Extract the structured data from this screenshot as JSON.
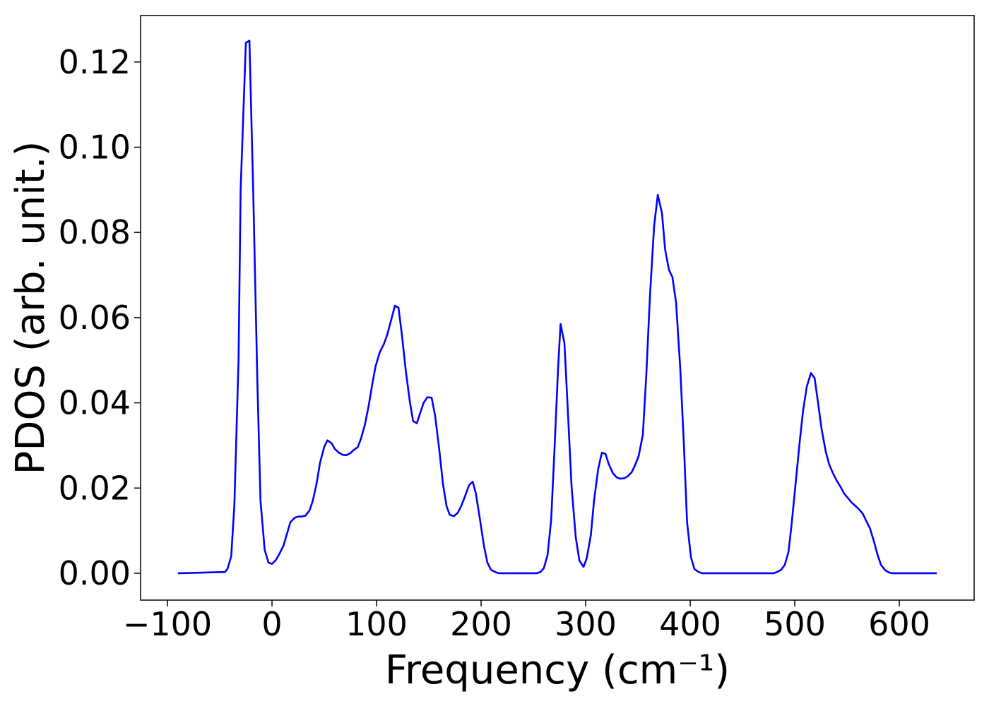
{
  "chart_data": {
    "type": "line",
    "xlabel": "Frequency (cm⁻¹)",
    "ylabel": "PDOS (arb. unit.)",
    "color": "#0000ff",
    "x": [
      -90,
      -45,
      -42.6,
      -39,
      -36,
      -32,
      -30,
      -25,
      -21.6,
      -18,
      -14,
      -11,
      -7,
      -3.4,
      0,
      3.4,
      7,
      11,
      14,
      17.6,
      21.6,
      25,
      28,
      32,
      36,
      39,
      42.6,
      46,
      50,
      53,
      57,
      60,
      64,
      67.6,
      71,
      75,
      78,
      82,
      85,
      89,
      92.6,
      96,
      99,
      103,
      107,
      110,
      113.5,
      117.6,
      121,
      124,
      128,
      132,
      135,
      138.5,
      142,
      145,
      148.6,
      152.7,
      156,
      160,
      163.5,
      167,
      170,
      174,
      177.7,
      181,
      184.5,
      188.5,
      192,
      195,
      199,
      202.7,
      206,
      209.5,
      213.5,
      217,
      253,
      256.8,
      260,
      263.5,
      267,
      270,
      273.6,
      276,
      279.7,
      283,
      286.5,
      290.5,
      294,
      298,
      301,
      305,
      308,
      312,
      315.5,
      319,
      322,
      326,
      329.7,
      333,
      337,
      340.5,
      344,
      347,
      350.7,
      354.7,
      358,
      361.5,
      365.5,
      369,
      373,
      376,
      379.7,
      383,
      386.5,
      390.5,
      394,
      397,
      400.7,
      404,
      408,
      411.5,
      479.7,
      483,
      487,
      490.5,
      494,
      497,
      501,
      504.7,
      508,
      511.5,
      515.5,
      519,
      522,
      525.7,
      529.7,
      533,
      536.5,
      540,
      544,
      547,
      550.7,
      554,
      558,
      561.5,
      565,
      568,
      572,
      575.7,
      579,
      582.4,
      586.5,
      589.9,
      593,
      635.8
    ],
    "values": [
      0,
      0.0003,
      0.001,
      0.004,
      0.016,
      0.05,
      0.09,
      0.1245,
      0.125,
      0.09,
      0.045,
      0.017,
      0.0055,
      0.0025,
      0.0022,
      0.003,
      0.0045,
      0.0065,
      0.009,
      0.012,
      0.013,
      0.0133,
      0.0133,
      0.0135,
      0.0148,
      0.017,
      0.021,
      0.026,
      0.0297,
      0.0312,
      0.0305,
      0.0292,
      0.0283,
      0.0278,
      0.0277,
      0.0282,
      0.0289,
      0.0296,
      0.0315,
      0.035,
      0.0395,
      0.0445,
      0.0485,
      0.0518,
      0.0538,
      0.0558,
      0.059,
      0.0628,
      0.0623,
      0.0565,
      0.0475,
      0.04,
      0.0357,
      0.0352,
      0.0378,
      0.04,
      0.0413,
      0.0412,
      0.037,
      0.029,
      0.021,
      0.0157,
      0.0137,
      0.0134,
      0.0142,
      0.0158,
      0.018,
      0.0207,
      0.0215,
      0.0187,
      0.0125,
      0.0065,
      0.0025,
      0.0008,
      0.0003,
      0,
      0,
      0.0003,
      0.0012,
      0.0042,
      0.0125,
      0.028,
      0.048,
      0.0585,
      0.054,
      0.038,
      0.0205,
      0.0085,
      0.003,
      0.0015,
      0.0035,
      0.009,
      0.017,
      0.0245,
      0.0283,
      0.028,
      0.0257,
      0.0235,
      0.0225,
      0.0222,
      0.0223,
      0.0228,
      0.0237,
      0.0252,
      0.0275,
      0.0325,
      0.0465,
      0.065,
      0.0815,
      0.0888,
      0.0845,
      0.076,
      0.0712,
      0.0695,
      0.0635,
      0.048,
      0.03,
      0.012,
      0.0038,
      0.001,
      0.0003,
      0,
      0,
      0.0003,
      0.0008,
      0.002,
      0.005,
      0.0115,
      0.0215,
      0.0308,
      0.0382,
      0.0438,
      0.047,
      0.0458,
      0.0405,
      0.0338,
      0.0285,
      0.0255,
      0.0235,
      0.0218,
      0.0202,
      0.0188,
      0.0177,
      0.0167,
      0.0158,
      0.015,
      0.014,
      0.0125,
      0.0105,
      0.0075,
      0.0045,
      0.002,
      0.0007,
      0.0002,
      0,
      0
    ],
    "xlim": [
      -125.7,
      671.6
    ],
    "ylim": [
      -0.0063,
      0.1309
    ],
    "xticks": [
      {
        "value": -100,
        "label": "−100"
      },
      0,
      100,
      200,
      300,
      400,
      500,
      600
    ],
    "yticks": [
      {
        "value": 0,
        "label": "0.00"
      },
      {
        "value": 0.02,
        "label": "0.02"
      },
      {
        "value": 0.04,
        "label": "0.04"
      },
      {
        "value": 0.06,
        "label": "0.06"
      },
      {
        "value": 0.08,
        "label": "0.08"
      },
      {
        "value": 0.1,
        "label": "0.10"
      },
      {
        "value": 0.12,
        "label": "0.12"
      }
    ]
  }
}
